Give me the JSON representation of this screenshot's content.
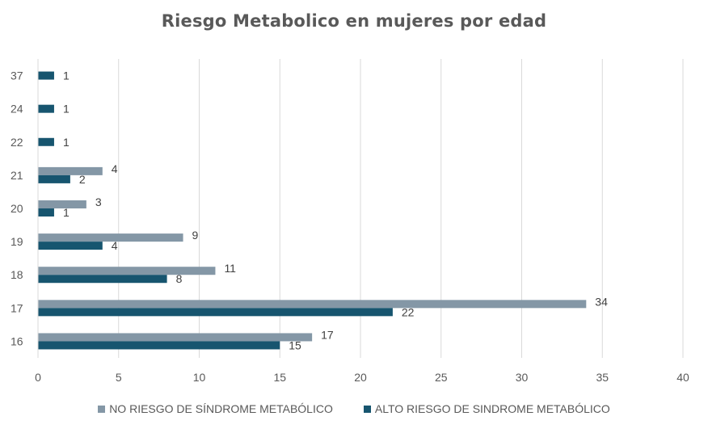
{
  "chart_data": {
    "type": "bar",
    "orientation": "horizontal",
    "title": "Riesgo Metabolico en mujeres por edad",
    "xlabel": "",
    "ylabel": "",
    "categories": [
      "16",
      "17",
      "18",
      "19",
      "20",
      "21",
      "22",
      "24",
      "37"
    ],
    "series": [
      {
        "name": "NO RIESGO DE SÍNDROME METABÓLICO",
        "color": "#8497A6",
        "values": [
          17,
          34,
          11,
          9,
          3,
          4,
          null,
          null,
          null
        ]
      },
      {
        "name": "ALTO RIESGO DE SINDROME METABÓLICO",
        "color": "#17556F",
        "values": [
          15,
          22,
          8,
          4,
          1,
          2,
          1,
          1,
          1
        ]
      }
    ],
    "xlim": [
      0,
      40
    ],
    "xticks": [
      0,
      5,
      10,
      15,
      20,
      25,
      30,
      35,
      40
    ],
    "grid": true,
    "data_labels": true,
    "legend_position": "bottom"
  }
}
